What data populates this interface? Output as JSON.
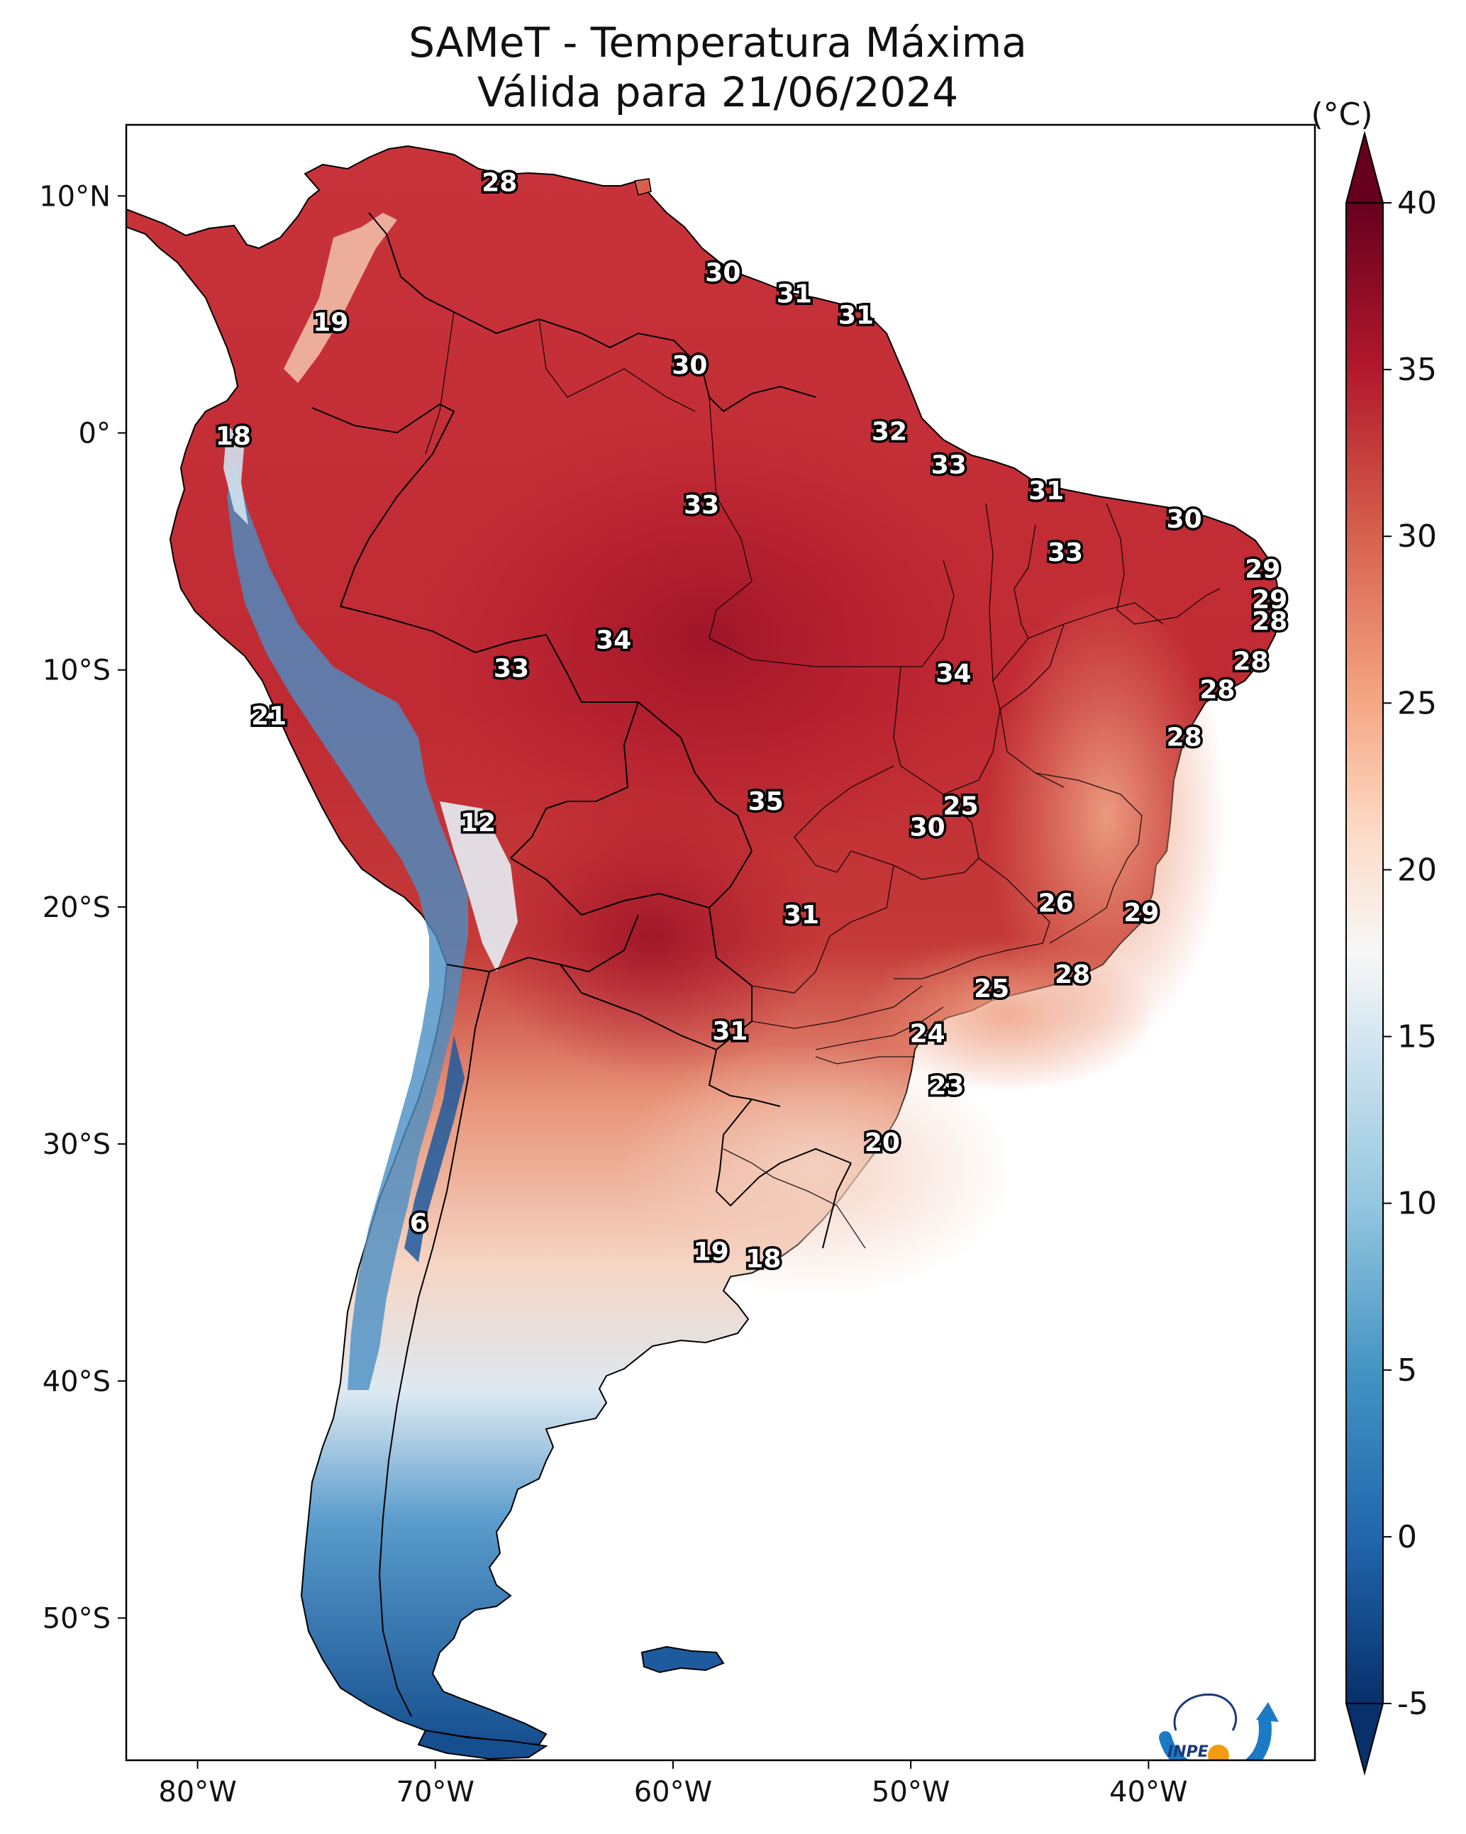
{
  "title": {
    "line1": "SAMeT - Temperatura Máxima",
    "line2": "Válida para 21/06/2024"
  },
  "map": {
    "lon_ticks": [
      "80°W",
      "70°W",
      "60°W",
      "50°W",
      "40°W"
    ],
    "lat_ticks": [
      "10°N",
      "0°",
      "10°S",
      "20°S",
      "30°S",
      "40°S",
      "50°S"
    ],
    "extent": {
      "lon_min": -83,
      "lon_max": -33,
      "lat_min": -56,
      "lat_max": 13
    }
  },
  "colorbar": {
    "unit": "(°C)",
    "ticks": [
      "-5",
      "0",
      "5",
      "10",
      "15",
      "20",
      "25",
      "30",
      "35",
      "40"
    ],
    "vmin": -5,
    "vmax": 40,
    "colors": [
      "#08306b",
      "#2166ac",
      "#4393c3",
      "#92c5de",
      "#d1e5f0",
      "#f7f7f7",
      "#fddbc7",
      "#f4a582",
      "#d6604d",
      "#b2182b",
      "#67001f"
    ]
  },
  "station_labels": [
    {
      "value": "28",
      "lon": -67.3,
      "lat": 10.5
    },
    {
      "value": "30",
      "lon": -57.9,
      "lat": 6.7
    },
    {
      "value": "31",
      "lon": -54.9,
      "lat": 5.8
    },
    {
      "value": "31",
      "lon": -52.3,
      "lat": 4.9
    },
    {
      "value": "30",
      "lon": -59.3,
      "lat": 2.8
    },
    {
      "value": "19",
      "lon": -74.4,
      "lat": 4.6
    },
    {
      "value": "18",
      "lon": -78.5,
      "lat": -0.2
    },
    {
      "value": "32",
      "lon": -50.9,
      "lat": 0.0
    },
    {
      "value": "33",
      "lon": -48.4,
      "lat": -1.4
    },
    {
      "value": "31",
      "lon": -44.3,
      "lat": -2.5
    },
    {
      "value": "30",
      "lon": -38.5,
      "lat": -3.7
    },
    {
      "value": "33",
      "lon": -58.8,
      "lat": -3.1
    },
    {
      "value": "33",
      "lon": -43.5,
      "lat": -5.1
    },
    {
      "value": "29",
      "lon": -35.2,
      "lat": -5.8
    },
    {
      "value": "29",
      "lon": -34.9,
      "lat": -7.1
    },
    {
      "value": "28",
      "lon": -34.9,
      "lat": -8.0
    },
    {
      "value": "34",
      "lon": -62.5,
      "lat": -8.8
    },
    {
      "value": "33",
      "lon": -66.8,
      "lat": -10.0
    },
    {
      "value": "34",
      "lon": -48.2,
      "lat": -10.2
    },
    {
      "value": "28",
      "lon": -35.7,
      "lat": -9.7
    },
    {
      "value": "28",
      "lon": -37.1,
      "lat": -10.9
    },
    {
      "value": "28",
      "lon": -38.5,
      "lat": -12.9
    },
    {
      "value": "21",
      "lon": -77.0,
      "lat": -12.0
    },
    {
      "value": "35",
      "lon": -56.1,
      "lat": -15.6
    },
    {
      "value": "25",
      "lon": -47.9,
      "lat": -15.8
    },
    {
      "value": "30",
      "lon": -49.3,
      "lat": -16.7
    },
    {
      "value": "12",
      "lon": -68.2,
      "lat": -16.5
    },
    {
      "value": "26",
      "lon": -43.9,
      "lat": -19.9
    },
    {
      "value": "29",
      "lon": -40.3,
      "lat": -20.3
    },
    {
      "value": "31",
      "lon": -54.6,
      "lat": -20.4
    },
    {
      "value": "28",
      "lon": -43.2,
      "lat": -22.9
    },
    {
      "value": "25",
      "lon": -46.6,
      "lat": -23.5
    },
    {
      "value": "31",
      "lon": -57.6,
      "lat": -25.3
    },
    {
      "value": "24",
      "lon": -49.3,
      "lat": -25.4
    },
    {
      "value": "23",
      "lon": -48.5,
      "lat": -27.6
    },
    {
      "value": "20",
      "lon": -51.2,
      "lat": -30.0
    },
    {
      "value": "6",
      "lon": -70.7,
      "lat": -33.4
    },
    {
      "value": "19",
      "lon": -58.4,
      "lat": -34.6
    },
    {
      "value": "18",
      "lon": -56.2,
      "lat": -34.9
    }
  ],
  "logo": {
    "text": "INPE"
  }
}
